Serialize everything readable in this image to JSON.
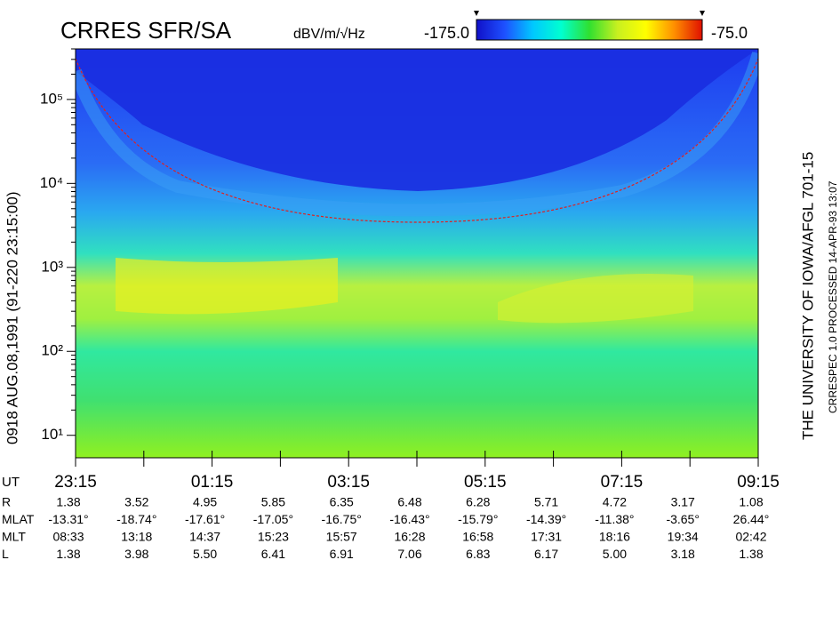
{
  "chart_data": {
    "type": "spectrogram",
    "title": "CRRES SFR/SA",
    "colorbar_label": "dBV/m/√Hz",
    "colorbar_ticks": [
      {
        "value": -175,
        "label": "-175.0"
      },
      {
        "value": -75,
        "label": "-75.0"
      }
    ],
    "colorbar_colors": [
      "#1010c8",
      "#1e50ff",
      "#00c8ff",
      "#00ffd0",
      "#30e030",
      "#c8f020",
      "#ffff00",
      "#ff9000",
      "#e01000"
    ],
    "log_scale": true,
    "ylim": [
      5.4,
      400000
    ],
    "yticks": [
      {
        "value": 10,
        "label": "10¹"
      },
      {
        "value": 100,
        "label": "10²"
      },
      {
        "value": 1000,
        "label": "10³"
      },
      {
        "value": 10000,
        "label": "10⁴"
      },
      {
        "value": 100000,
        "label": "10⁵"
      }
    ],
    "left_label": "0918   AUG.08,1991   (91-220 23:15:00)",
    "right_label": "THE UNIVERSITY OF IOWA/AFGL 701-15",
    "right_label_2": "CRRESPEC 1.0   PROCESSED 14-APR-93  13:07",
    "x_label": "UT",
    "categories": [
      "23:15",
      null,
      "01:15",
      null,
      "03:15",
      null,
      "05:15",
      null,
      "07:15",
      null,
      "09:15"
    ],
    "ephemeris": [
      {
        "name": "R",
        "values": [
          "1.38",
          "3.52",
          "4.95",
          "5.85",
          "6.35",
          "6.48",
          "6.28",
          "5.71",
          "4.72",
          "3.17",
          "1.08"
        ]
      },
      {
        "name": "MLAT",
        "values": [
          "-13.31°",
          "-18.74°",
          "-17.61°",
          "-17.05°",
          "-16.75°",
          "-16.43°",
          "-15.79°",
          "-14.39°",
          "-11.38°",
          "-3.65°",
          "26.44°"
        ]
      },
      {
        "name": "MLT",
        "values": [
          "08:33",
          "13:18",
          "14:37",
          "15:23",
          "15:57",
          "16:28",
          "16:58",
          "17:31",
          "18:16",
          "19:34",
          "02:42"
        ]
      },
      {
        "name": "L",
        "values": [
          "1.38",
          "3.98",
          "5.50",
          "6.41",
          "6.91",
          "7.06",
          "6.83",
          "6.17",
          "5.00",
          "3.18",
          "1.38"
        ]
      }
    ]
  }
}
